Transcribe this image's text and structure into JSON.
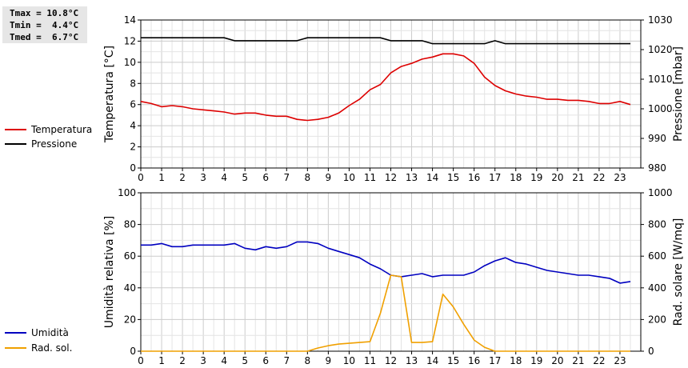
{
  "stats": {
    "lines": [
      "Tmax = 10.8°C",
      "Tmin =  4.4°C",
      "Tmed =  6.7°C"
    ]
  },
  "legend_top": [
    {
      "label": "Temperatura",
      "color": "#dd0000"
    },
    {
      "label": "Pressione",
      "color": "#000000"
    }
  ],
  "legend_bottom": [
    {
      "label": "Umidità",
      "color": "#0000c0"
    },
    {
      "label": "Rad. sol.",
      "color": "#f0a000"
    }
  ],
  "chart_data": [
    {
      "type": "line",
      "x_ticks": [
        0,
        1,
        2,
        3,
        4,
        5,
        6,
        7,
        8,
        9,
        10,
        11,
        12,
        13,
        14,
        15,
        16,
        17,
        18,
        19,
        20,
        21,
        22,
        23
      ],
      "grid": true,
      "y_left": {
        "label": "Temperatura [°C]",
        "ylim": [
          0,
          14
        ],
        "ticks": [
          0,
          2,
          4,
          6,
          8,
          10,
          12,
          14
        ]
      },
      "y_right": {
        "label": "Pressione [mbar]",
        "ylim": [
          980,
          1030
        ],
        "ticks": [
          980,
          990,
          1000,
          1010,
          1020,
          1030
        ]
      },
      "series": [
        {
          "name": "Temperatura",
          "axis": "left",
          "color": "#dd0000",
          "x": [
            0,
            0.5,
            1,
            1.5,
            2,
            2.5,
            3,
            3.5,
            4,
            4.5,
            5,
            5.5,
            6,
            6.5,
            7,
            7.5,
            8,
            8.5,
            9,
            9.5,
            10,
            10.5,
            11,
            11.5,
            12,
            12.5,
            13,
            13.5,
            14,
            14.5,
            15,
            15.5,
            16,
            16.5,
            17,
            17.5,
            18,
            18.5,
            19,
            19.5,
            20,
            20.5,
            21,
            21.5,
            22,
            22.5,
            23,
            23.5
          ],
          "y": [
            6.3,
            6.1,
            5.8,
            5.9,
            5.8,
            5.6,
            5.5,
            5.4,
            5.3,
            5.1,
            5.2,
            5.2,
            5.0,
            4.9,
            4.9,
            4.6,
            4.5,
            4.6,
            4.8,
            5.2,
            5.9,
            6.5,
            7.4,
            7.9,
            9.0,
            9.6,
            9.9,
            10.3,
            10.5,
            10.8,
            10.8,
            10.6,
            9.9,
            8.6,
            7.8,
            7.3,
            7.0,
            6.8,
            6.7,
            6.5,
            6.5,
            6.4,
            6.4,
            6.3,
            6.1,
            6.1,
            6.3,
            6.0
          ]
        },
        {
          "name": "Pressione",
          "axis": "right",
          "color": "#000000",
          "x": [
            0,
            1,
            2,
            3,
            4,
            4.5,
            5,
            6,
            7,
            7.5,
            8,
            9,
            10,
            11,
            11.5,
            12,
            13,
            13.5,
            14,
            15,
            16,
            16.5,
            17,
            17.5,
            18,
            19,
            20,
            21,
            22,
            23,
            23.5
          ],
          "y": [
            1024,
            1024,
            1024,
            1024,
            1024,
            1023,
            1023,
            1023,
            1023,
            1023,
            1024,
            1024,
            1024,
            1024,
            1024,
            1023,
            1023,
            1023,
            1022,
            1022,
            1022,
            1022,
            1023,
            1022,
            1022,
            1022,
            1022,
            1022,
            1022,
            1022,
            1022
          ]
        }
      ]
    },
    {
      "type": "line",
      "x_ticks": [
        0,
        1,
        2,
        3,
        4,
        5,
        6,
        7,
        8,
        9,
        10,
        11,
        12,
        13,
        14,
        15,
        16,
        17,
        18,
        19,
        20,
        21,
        22,
        23
      ],
      "grid": true,
      "y_left": {
        "label": "Umidità relativa [%]",
        "ylim": [
          0,
          100
        ],
        "ticks": [
          0,
          20,
          40,
          60,
          80,
          100
        ]
      },
      "y_right": {
        "label": "Rad. solare [W/mq]",
        "ylim": [
          0,
          1000
        ],
        "ticks": [
          0,
          200,
          400,
          600,
          800,
          1000
        ]
      },
      "series": [
        {
          "name": "Umidità",
          "axis": "left",
          "color": "#0000c0",
          "x": [
            0,
            0.5,
            1,
            1.5,
            2,
            2.5,
            3,
            3.5,
            4,
            4.5,
            5,
            5.5,
            6,
            6.5,
            7,
            7.5,
            8,
            8.5,
            9,
            9.5,
            10,
            10.5,
            11,
            11.5,
            12,
            12.5,
            13,
            13.5,
            14,
            14.5,
            15,
            15.5,
            16,
            16.5,
            17,
            17.5,
            18,
            18.5,
            19,
            19.5,
            20,
            20.5,
            21,
            21.5,
            22,
            22.5,
            23,
            23.5
          ],
          "y": [
            67,
            67,
            68,
            66,
            66,
            67,
            67,
            67,
            67,
            68,
            65,
            64,
            66,
            65,
            66,
            69,
            69,
            68,
            65,
            63,
            61,
            59,
            55,
            52,
            48,
            47,
            48,
            49,
            47,
            48,
            48,
            48,
            50,
            54,
            57,
            59,
            56,
            55,
            53,
            51,
            50,
            49,
            48,
            48,
            47,
            46,
            43,
            44
          ]
        },
        {
          "name": "Rad. sol.",
          "axis": "right",
          "color": "#f0a000",
          "x": [
            0,
            1,
            2,
            3,
            4,
            5,
            6,
            7,
            8,
            8.5,
            9,
            9.5,
            10,
            10.5,
            11,
            11.5,
            12,
            12.5,
            13,
            13.5,
            14,
            14.5,
            15,
            15.5,
            16,
            16.5,
            17,
            17.5,
            18,
            19,
            20,
            21,
            22,
            23,
            23.5
          ],
          "y": [
            0,
            0,
            0,
            0,
            0,
            0,
            0,
            0,
            0,
            20,
            35,
            45,
            50,
            55,
            60,
            240,
            480,
            470,
            55,
            55,
            60,
            360,
            280,
            170,
            70,
            25,
            0,
            0,
            0,
            0,
            0,
            0,
            0,
            0,
            0
          ]
        }
      ]
    }
  ]
}
